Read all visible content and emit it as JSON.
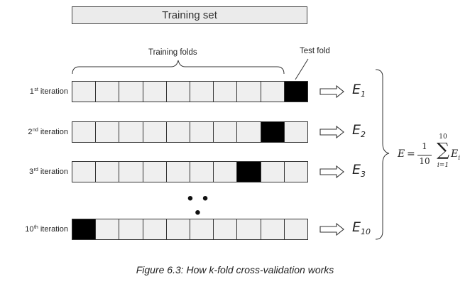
{
  "training_set_label": "Training set",
  "training_folds_label": "Training folds",
  "test_fold_label": "Test fold",
  "folds_per_row": 10,
  "iterations": [
    {
      "num": "1",
      "suffix": "st",
      "word": " iteration",
      "test_index": 9,
      "error_base": "E",
      "error_sub": "1"
    },
    {
      "num": "2",
      "suffix": "nd",
      "word": " iteration",
      "test_index": 8,
      "error_base": "E",
      "error_sub": "2"
    },
    {
      "num": "3",
      "suffix": "rd",
      "word": " iteration",
      "test_index": 7,
      "error_base": "E",
      "error_sub": "3"
    },
    {
      "num": "10",
      "suffix": "th",
      "word": " iteration",
      "test_index": 0,
      "error_base": "E",
      "error_sub": "10"
    }
  ],
  "ellipsis": "• • •",
  "formula": {
    "lhs": "E",
    "equals": "=",
    "numerator": "1",
    "denominator": "10",
    "sum_upper": "10",
    "sum_lower": "i=1",
    "term": "E",
    "term_sub": "i"
  },
  "caption": "Figure 6.3: How k-fold cross-validation works"
}
